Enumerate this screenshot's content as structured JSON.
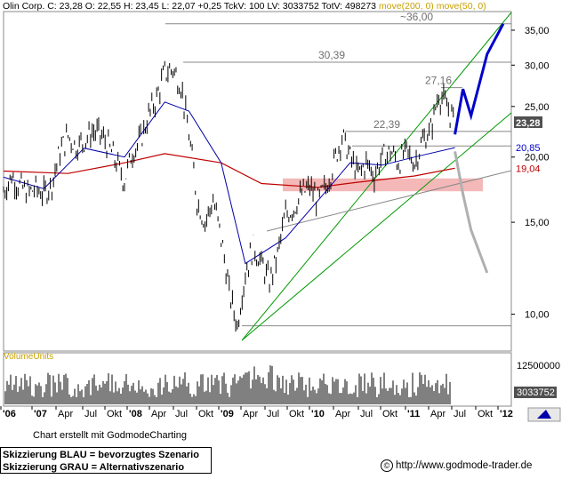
{
  "header": {
    "instrument": "Olin Corp.",
    "ohlc": "C: 23,28 O: 22,55 H: 23,45 L: 22,07 +0,25 TckV: 100 LV: 3033752 TotV: 498273",
    "indicators": "move(200, 0) move(50, 0)"
  },
  "volume_label": "VolumeUnits",
  "credit": "Chart erstellt mit GodmodeCharting",
  "legend": {
    "line1": "Skizzierung BLAU = bevorzugtes Szenario",
    "line2": "Skizzierung GRAU = Alternativszenario"
  },
  "url": "http://www.godmode-trader.de",
  "copyright_symbol": "©",
  "colors": {
    "price": "#000000",
    "ma200": "#c00000",
    "ma50": "#0000aa",
    "channel": "#009900",
    "blue_scenario": "#0000cc",
    "grey_scenario": "#b0b0b0",
    "support_zone": "#f4b8b8",
    "volume": "#000000"
  },
  "chart_data": {
    "type": "line",
    "y_scale": "log",
    "ylim": [
      8.5,
      38
    ],
    "y_ticks": [
      10,
      15,
      20,
      25,
      30,
      35
    ],
    "y_tick_labels": [
      "10,00",
      "15,00",
      "20,00",
      "25,00",
      "30,00",
      "35,00"
    ],
    "x_tick_labels": [
      "'06",
      "'07",
      "Apr",
      "Jul",
      "Okt",
      "'08",
      "Apr",
      "Jul",
      "Okt",
      "'09",
      "Apr",
      "Jul",
      "Okt",
      "'10",
      "Apr",
      "Jul",
      "Okt",
      "'11",
      "Apr",
      "Jul",
      "Okt",
      "'12"
    ],
    "x_range": [
      "2006-10",
      "2012-01"
    ],
    "price_series": [
      {
        "date": "2006-10",
        "close": 17.2
      },
      {
        "date": "2006-11",
        "close": 18.4
      },
      {
        "date": "2006-12",
        "close": 17.6
      },
      {
        "date": "2007-01",
        "close": 17.1
      },
      {
        "date": "2007-02",
        "close": 17.4
      },
      {
        "date": "2007-03",
        "close": 17.0
      },
      {
        "date": "2007-04",
        "close": 17.8
      },
      {
        "date": "2007-05",
        "close": 20.5
      },
      {
        "date": "2007-06",
        "close": 22.0
      },
      {
        "date": "2007-07",
        "close": 21.0
      },
      {
        "date": "2007-08",
        "close": 21.5
      },
      {
        "date": "2007-09",
        "close": 22.4
      },
      {
        "date": "2007-10",
        "close": 22.1
      },
      {
        "date": "2007-11",
        "close": 21.0
      },
      {
        "date": "2007-12",
        "close": 19.5
      },
      {
        "date": "2008-01",
        "close": 18.0
      },
      {
        "date": "2008-02",
        "close": 20.5
      },
      {
        "date": "2008-03",
        "close": 21.5
      },
      {
        "date": "2008-04",
        "close": 24.0
      },
      {
        "date": "2008-05",
        "close": 26.0
      },
      {
        "date": "2008-06",
        "close": 29.0
      },
      {
        "date": "2008-07",
        "close": 29.5
      },
      {
        "date": "2008-08",
        "close": 27.5
      },
      {
        "date": "2008-09",
        "close": 22.0
      },
      {
        "date": "2008-10",
        "close": 16.5
      },
      {
        "date": "2008-11",
        "close": 15.0
      },
      {
        "date": "2008-12",
        "close": 16.5
      },
      {
        "date": "2009-01",
        "close": 14.0
      },
      {
        "date": "2009-02",
        "close": 11.0
      },
      {
        "date": "2009-03",
        "close": 9.5
      },
      {
        "date": "2009-04",
        "close": 12.0
      },
      {
        "date": "2009-05",
        "close": 13.5
      },
      {
        "date": "2009-06",
        "close": 12.5
      },
      {
        "date": "2009-07",
        "close": 11.5
      },
      {
        "date": "2009-08",
        "close": 13.0
      },
      {
        "date": "2009-09",
        "close": 15.5
      },
      {
        "date": "2009-10",
        "close": 16.0
      },
      {
        "date": "2009-11",
        "close": 17.0
      },
      {
        "date": "2009-12",
        "close": 17.5
      },
      {
        "date": "2010-01",
        "close": 16.5
      },
      {
        "date": "2010-02",
        "close": 17.5
      },
      {
        "date": "2010-03",
        "close": 19.5
      },
      {
        "date": "2010-04",
        "close": 22.0
      },
      {
        "date": "2010-05",
        "close": 20.0
      },
      {
        "date": "2010-06",
        "close": 18.5
      },
      {
        "date": "2010-07",
        "close": 19.5
      },
      {
        "date": "2010-08",
        "close": 18.5
      },
      {
        "date": "2010-09",
        "close": 20.0
      },
      {
        "date": "2010-10",
        "close": 20.5
      },
      {
        "date": "2010-11",
        "close": 19.5
      },
      {
        "date": "2010-12",
        "close": 20.5
      },
      {
        "date": "2011-01",
        "close": 19.5
      },
      {
        "date": "2011-02",
        "close": 21.5
      },
      {
        "date": "2011-03",
        "close": 22.5
      },
      {
        "date": "2011-04",
        "close": 26.5
      },
      {
        "date": "2011-05",
        "close": 25.0
      },
      {
        "date": "2011-06",
        "close": 23.28
      }
    ],
    "ma200_series": [
      {
        "date": "2006-10",
        "value": 18.8
      },
      {
        "date": "2007-06",
        "value": 18.6
      },
      {
        "date": "2008-01",
        "value": 19.5
      },
      {
        "date": "2008-06",
        "value": 20.3
      },
      {
        "date": "2009-01",
        "value": 19.5
      },
      {
        "date": "2009-06",
        "value": 17.8
      },
      {
        "date": "2010-01",
        "value": 17.5
      },
      {
        "date": "2010-06",
        "value": 17.9
      },
      {
        "date": "2011-01",
        "value": 18.4
      },
      {
        "date": "2011-06",
        "value": 19.04
      }
    ],
    "ma50_series": [
      {
        "date": "2006-10",
        "value": 18.3
      },
      {
        "date": "2007-03",
        "value": 17.4
      },
      {
        "date": "2007-08",
        "value": 20.8
      },
      {
        "date": "2008-01",
        "value": 20.0
      },
      {
        "date": "2008-06",
        "value": 25.5
      },
      {
        "date": "2008-09",
        "value": 24.5
      },
      {
        "date": "2009-01",
        "value": 19.5
      },
      {
        "date": "2009-04",
        "value": 12.5
      },
      {
        "date": "2009-09",
        "value": 14.0
      },
      {
        "date": "2010-01",
        "value": 16.5
      },
      {
        "date": "2010-05",
        "value": 19.5
      },
      {
        "date": "2010-09",
        "value": 19.3
      },
      {
        "date": "2011-01",
        "value": 20.0
      },
      {
        "date": "2011-06",
        "value": 20.85
      }
    ],
    "volume_axis": {
      "ticks": [
        12500000,
        3033752
      ],
      "tick_labels": [
        "12500000",
        "3033752"
      ]
    },
    "annotations": [
      {
        "text": "~36,00",
        "value": 36.0
      },
      {
        "text": "30,39",
        "value": 30.39
      },
      {
        "text": "27,16",
        "value": 27.16
      },
      {
        "text": "22,39",
        "value": 22.39
      }
    ],
    "price_tags": [
      {
        "text": "23,28",
        "value": 23.28,
        "color": "#505050"
      },
      {
        "text": "20,85",
        "value": 20.85,
        "color": "#0000cc"
      },
      {
        "text": "19,04",
        "value": 19.04,
        "color": "#c00000"
      }
    ],
    "support_zone": [
      17.2,
      18.2
    ],
    "blue_scenario": [
      {
        "date": "2011-06",
        "value": 22.1
      },
      {
        "date": "2011-07",
        "value": 27.0
      },
      {
        "date": "2011-08",
        "value": 24.0
      },
      {
        "date": "2011-10",
        "value": 31.5
      },
      {
        "date": "2011-12",
        "value": 36.0
      }
    ],
    "grey_scenario": [
      {
        "date": "2011-06",
        "value": 20.5
      },
      {
        "date": "2011-07",
        "value": 17.0
      },
      {
        "date": "2011-08",
        "value": 14.5
      },
      {
        "date": "2011-10",
        "value": 12.0
      }
    ]
  }
}
